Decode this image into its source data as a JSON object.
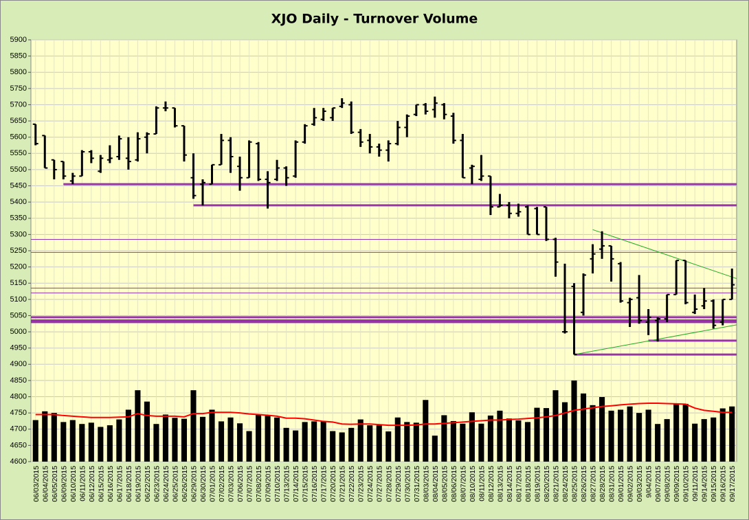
{
  "chart_data": {
    "type": "ohlc",
    "title": "XJO Daily - Turnover Volume",
    "categories": [
      "06/03/2015",
      "06/04/2015",
      "06/05/2015",
      "06/09/2015",
      "06/10/2015",
      "06/11/2015",
      "06/12/2015",
      "06/15/2015",
      "06/16/2015",
      "06/17/2015",
      "06/18/2015",
      "06/19/2015",
      "06/22/2015",
      "06/23/2015",
      "06/24/2015",
      "06/25/2015",
      "06/26/2015",
      "06/29/2015",
      "06/30/2015",
      "07/01/2015",
      "07/02/2015",
      "07/03/2015",
      "07/06/2015",
      "07/07/2015",
      "07/08/2015",
      "07/09/2015",
      "07/10/2015",
      "07/13/2015",
      "07/14/2015",
      "07/15/2015",
      "07/16/2015",
      "07/17/2015",
      "07/20/2015",
      "07/21/2015",
      "07/22/2015",
      "07/23/2015",
      "07/24/2015",
      "07/27/2015",
      "07/28/2015",
      "07/29/2015",
      "07/30/2015",
      "07/31/2015",
      "08/03/2015",
      "08/04/2015",
      "08/05/2015",
      "08/06/2015",
      "08/07/2015",
      "08/10/2015",
      "08/11/2015",
      "08/12/2015",
      "08/13/2015",
      "08/14/2015",
      "08/17/2015",
      "08/18/2015",
      "08/19/2015",
      "08/20/2015",
      "08/21/2015",
      "08/24/2015",
      "08/25/2015",
      "08/26/2015",
      "08/27/2015",
      "08/28/2015",
      "08/31/2015",
      "09/01/2015",
      "09/02/2015",
      "09/03/2015",
      "9/04/2015",
      "09/07/2015",
      "09/08/2015",
      "09/09/2015",
      "09/10/2015",
      "09/11/2015",
      "09/14/2015",
      "09/15/2015",
      "09/16/2015",
      "09/17/2015"
    ],
    "open": [
      5640,
      5605,
      5530,
      5525,
      5465,
      5480,
      5555,
      5495,
      5530,
      5540,
      5535,
      5530,
      5600,
      5610,
      5690,
      5690,
      5635,
      5475,
      5455,
      5455,
      5515,
      5590,
      5510,
      5475,
      5580,
      5470,
      5470,
      5505,
      5480,
      5585,
      5640,
      5655,
      5660,
      5695,
      5700,
      5615,
      5590,
      5570,
      5560,
      5580,
      5630,
      5670,
      5700,
      5685,
      5700,
      5665,
      5590,
      5505,
      5470,
      5480,
      5385,
      5390,
      5365,
      5385,
      5380,
      5385,
      5285,
      5000,
      5140,
      5060,
      5225,
      5255,
      5265,
      5210,
      5090,
      5105,
      5030,
      5035,
      5040,
      5115,
      5220,
      5060,
      5080,
      5095,
      5030,
      5100
    ],
    "high": [
      5640,
      5605,
      5530,
      5525,
      5490,
      5560,
      5560,
      5545,
      5575,
      5605,
      5600,
      5615,
      5615,
      5695,
      5710,
      5690,
      5635,
      5550,
      5470,
      5515,
      5610,
      5600,
      5540,
      5590,
      5585,
      5495,
      5530,
      5510,
      5590,
      5640,
      5690,
      5690,
      5690,
      5720,
      5710,
      5625,
      5610,
      5580,
      5590,
      5650,
      5670,
      5700,
      5705,
      5725,
      5705,
      5675,
      5610,
      5515,
      5545,
      5480,
      5425,
      5400,
      5395,
      5390,
      5385,
      5385,
      5290,
      5210,
      5150,
      5180,
      5270,
      5310,
      5265,
      5215,
      5105,
      5175,
      5070,
      5045,
      5115,
      5220,
      5220,
      5115,
      5135,
      5100,
      5100,
      5195
    ],
    "low": [
      5575,
      5505,
      5470,
      5470,
      5455,
      5480,
      5520,
      5490,
      5520,
      5530,
      5500,
      5525,
      5550,
      5610,
      5680,
      5630,
      5525,
      5410,
      5390,
      5455,
      5515,
      5490,
      5435,
      5475,
      5465,
      5380,
      5465,
      5450,
      5475,
      5580,
      5635,
      5650,
      5650,
      5690,
      5610,
      5570,
      5550,
      5540,
      5525,
      5575,
      5600,
      5665,
      5670,
      5660,
      5655,
      5580,
      5475,
      5455,
      5465,
      5360,
      5385,
      5350,
      5355,
      5300,
      5300,
      5280,
      5170,
      4995,
      4930,
      5050,
      5180,
      5225,
      5155,
      5090,
      5015,
      5025,
      4990,
      4970,
      5030,
      5115,
      5085,
      5055,
      5070,
      5010,
      5020,
      5100
    ],
    "close": [
      5580,
      5505,
      5500,
      5480,
      5480,
      5555,
      5535,
      5535,
      5535,
      5595,
      5525,
      5595,
      5610,
      5690,
      5690,
      5635,
      5545,
      5420,
      5460,
      5515,
      5590,
      5540,
      5475,
      5585,
      5470,
      5460,
      5505,
      5475,
      5585,
      5635,
      5660,
      5680,
      5690,
      5705,
      5615,
      5585,
      5570,
      5560,
      5580,
      5630,
      5665,
      5700,
      5680,
      5705,
      5670,
      5590,
      5475,
      5510,
      5480,
      5385,
      5390,
      5365,
      5370,
      5300,
      5300,
      5285,
      5215,
      5000,
      4930,
      5175,
      5240,
      5265,
      5225,
      5095,
      5100,
      5035,
      5045,
      5040,
      5115,
      5220,
      5090,
      5070,
      5095,
      5020,
      5100,
      5145
    ],
    "volume": {
      "color": "#000000",
      "values": [
        4728,
        4755,
        4750,
        4722,
        4728,
        4716,
        4720,
        4707,
        4712,
        4730,
        4760,
        4820,
        4785,
        4716,
        4745,
        4735,
        4732,
        4820,
        4738,
        4760,
        4724,
        4736,
        4718,
        4694,
        4744,
        4744,
        4736,
        4704,
        4696,
        4722,
        4724,
        4724,
        4694,
        4690,
        4704,
        4730,
        4712,
        4712,
        4693,
        4736,
        4722,
        4720,
        4790,
        4680,
        4743,
        4725,
        4717,
        4752,
        4717,
        4742,
        4757,
        4733,
        4727,
        4722,
        4766,
        4765,
        4820,
        4783,
        4850,
        4810,
        4774,
        4799,
        4757,
        4760,
        4770,
        4750,
        4760,
        4716,
        4731,
        4780,
        4778,
        4717,
        4731,
        4736,
        4764,
        4770
      ]
    },
    "moving_average": {
      "color": "#ff0000",
      "values": [
        4745,
        4745,
        4745,
        4742,
        4740,
        4738,
        4736,
        4736,
        4736,
        4737,
        4738,
        4748,
        4742,
        4740,
        4740,
        4740,
        4738,
        4748,
        4748,
        4752,
        4752,
        4752,
        4750,
        4747,
        4745,
        4743,
        4740,
        4734,
        4734,
        4732,
        4728,
        4724,
        4722,
        4716,
        4715,
        4716,
        4716,
        4714,
        4712,
        4712,
        4712,
        4713,
        4716,
        4716,
        4718,
        4720,
        4722,
        4724,
        4726,
        4728,
        4728,
        4730,
        4731,
        4733,
        4735,
        4738,
        4742,
        4750,
        4758,
        4762,
        4766,
        4770,
        4772,
        4775,
        4777,
        4779,
        4780,
        4780,
        4779,
        4778,
        4777,
        4765,
        4758,
        4755,
        4752,
        4752
      ]
    },
    "levels": {
      "color": "#9933aa",
      "lines": [
        {
          "value": 5455,
          "from": "06/09/2015",
          "bold": true
        },
        {
          "value": 5390,
          "from": "06/29/2015",
          "bold": true
        },
        {
          "value": 5285
        },
        {
          "value": 5245
        },
        {
          "value": 5135
        },
        {
          "value": 5120
        },
        {
          "value": 5045,
          "bold": true
        },
        {
          "value": 5035,
          "bold": true
        },
        {
          "value": 5030,
          "bold": true
        },
        {
          "value": 4973,
          "from": "9/04/2015",
          "bold": true
        },
        {
          "value": 4930,
          "from": "08/25/2015",
          "bold": true
        }
      ]
    },
    "trendlines": {
      "color": "#22aa22",
      "lines": [
        {
          "from": [
            "08/27/2015",
            5315
          ],
          "to": [
            "09/17/2015",
            5169
          ]
        },
        {
          "from": [
            "08/25/2015",
            4930
          ],
          "to": [
            "09/17/2015",
            5019
          ]
        }
      ]
    },
    "ylim": [
      4600,
      5900
    ],
    "yticks": [
      4600,
      4650,
      4700,
      4750,
      4800,
      4850,
      4900,
      4950,
      5000,
      5050,
      5100,
      5150,
      5200,
      5250,
      5300,
      5350,
      5400,
      5450,
      5500,
      5550,
      5600,
      5650,
      5700,
      5750,
      5800,
      5850,
      5900
    ],
    "grid": true
  }
}
